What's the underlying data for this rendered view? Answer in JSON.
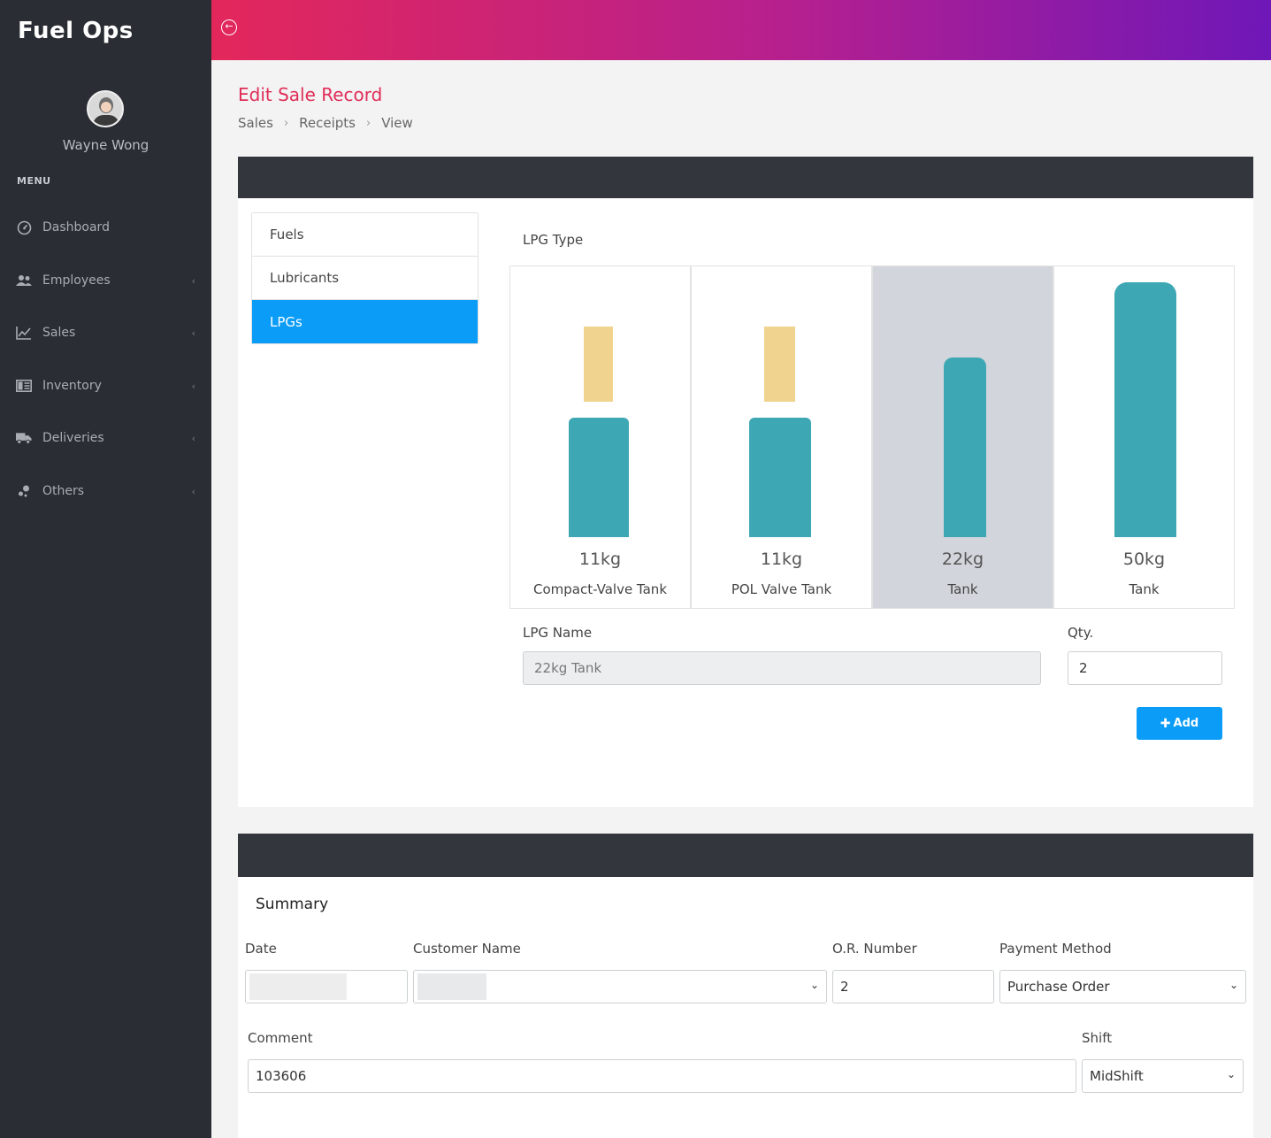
{
  "app": {
    "brand": "Fuel Ops"
  },
  "user": {
    "name": "Wayne Wong"
  },
  "sidebar": {
    "menu_label": "MENU",
    "items": [
      {
        "label": "Dashboard",
        "icon": "dashboard-icon"
      },
      {
        "label": "Employees",
        "icon": "users-icon"
      },
      {
        "label": "Sales",
        "icon": "chart-line-icon"
      },
      {
        "label": "Inventory",
        "icon": "inventory-icon"
      },
      {
        "label": "Deliveries",
        "icon": "truck-icon"
      },
      {
        "label": "Others",
        "icon": "others-icon"
      }
    ]
  },
  "header": {
    "title": "Edit Sale Record",
    "breadcrumb": [
      "Sales",
      "Receipts",
      "View"
    ]
  },
  "categories": [
    {
      "label": "Fuels",
      "active": false
    },
    {
      "label": "Lubricants",
      "active": false
    },
    {
      "label": "LPGs",
      "active": true
    }
  ],
  "lpg": {
    "type_label": "LPG Type",
    "tiles": [
      {
        "weight": "11kg",
        "name": "Compact-Valve Tank",
        "selected": false
      },
      {
        "weight": "11kg",
        "name": "POL Valve Tank",
        "selected": false
      },
      {
        "weight": "22kg",
        "name": "Tank",
        "selected": true
      },
      {
        "weight": "50kg",
        "name": "Tank",
        "selected": false
      }
    ],
    "name_label": "LPG Name",
    "name_value": "22kg Tank",
    "qty_label": "Qty.",
    "qty_value": "2",
    "add_label": "Add"
  },
  "summary": {
    "title": "Summary",
    "date_label": "Date",
    "customer_label": "Customer Name",
    "or_label": "O.R. Number",
    "or_value": "2",
    "payment_label": "Payment Method",
    "payment_value": "Purchase Order",
    "comment_label": "Comment",
    "comment_value": "103606",
    "shift_label": "Shift",
    "shift_value": "MidShift"
  }
}
